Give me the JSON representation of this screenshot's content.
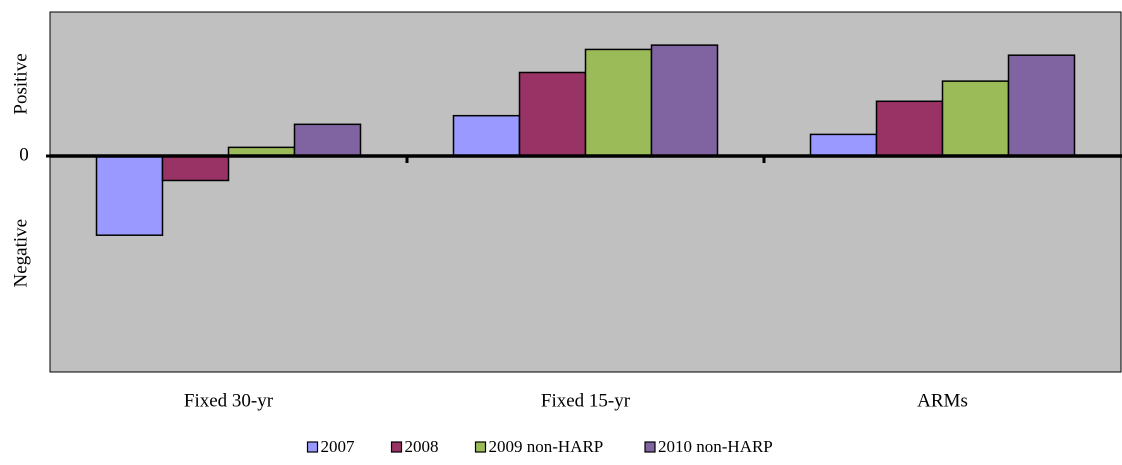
{
  "chart_data": {
    "type": "bar",
    "annotations": [
      "Positive",
      "Negative"
    ],
    "categories": [
      "Fixed 30-yr",
      "Fixed 15-yr",
      "ARMs"
    ],
    "series": [
      {
        "name": "2007",
        "color": "#9999ff",
        "values": [
          -5.5,
          2.8,
          1.5
        ]
      },
      {
        "name": "2008",
        "color": "#993366",
        "values": [
          -1.7,
          5.8,
          3.8
        ]
      },
      {
        "name": "2009 non-HARP",
        "color": "#9bbb59",
        "values": [
          0.6,
          7.4,
          5.2
        ]
      },
      {
        "name": "2010 non-HARP",
        "color": "#8064a2",
        "values": [
          2.2,
          7.7,
          7.0
        ]
      }
    ],
    "ylim": [
      -15,
      10
    ],
    "yticks": [
      0
    ],
    "grid": false,
    "legend": "bottom"
  }
}
